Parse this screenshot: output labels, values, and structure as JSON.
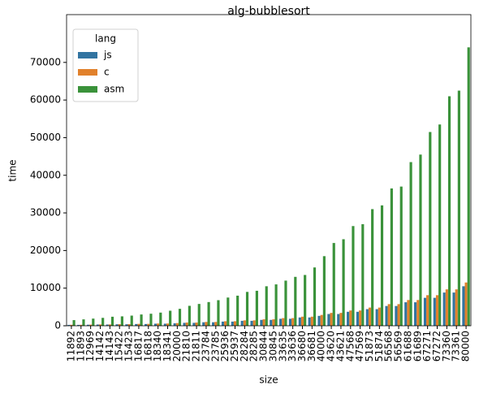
{
  "chart_data": {
    "type": "bar",
    "title": "alg-bubblesort",
    "x_label": "size",
    "y_label": "time",
    "categories": [
      "11892",
      "11893",
      "12969",
      "14142",
      "14143",
      "15422",
      "15423",
      "16817",
      "16818",
      "18340",
      "18341",
      "20000",
      "21810",
      "21811",
      "23784",
      "23785",
      "25936",
      "25937",
      "28284",
      "28285",
      "30844",
      "30845",
      "33635",
      "33636",
      "36680",
      "36681",
      "40000",
      "43620",
      "43621",
      "47568",
      "47569",
      "51873",
      "51874",
      "56568",
      "56569",
      "61688",
      "61689",
      "67271",
      "67272",
      "73360",
      "73361",
      "80000"
    ],
    "series": [
      {
        "name": "js",
        "color": "#3274a1",
        "values": [
          232,
          232,
          276,
          328,
          328,
          390,
          390,
          464,
          464,
          552,
          552,
          656,
          780,
          780,
          928,
          928,
          1104,
          1104,
          1312,
          1312,
          1561,
          1561,
          1856,
          1856,
          2207,
          2207,
          2625,
          3122,
          3122,
          3712,
          3712,
          4415,
          4415,
          5250,
          5250,
          6243,
          6243,
          7425,
          7425,
          8830,
          8830,
          10500
        ]
      },
      {
        "name": "c",
        "color": "#e1812c",
        "values": [
          254,
          254,
          302,
          359,
          359,
          427,
          427,
          508,
          508,
          605,
          605,
          719,
          855,
          855,
          1017,
          1017,
          1209,
          1209,
          1437,
          1437,
          1710,
          1710,
          2033,
          2033,
          2418,
          2418,
          2875,
          3419,
          3419,
          4066,
          4066,
          4835,
          4835,
          5750,
          5750,
          6838,
          6838,
          8132,
          8132,
          9670,
          9670,
          11500
        ]
      },
      {
        "name": "asm",
        "color": "#3a923a",
        "values": [
          1500,
          1700,
          1900,
          2100,
          2400,
          2500,
          2700,
          3000,
          3200,
          3500,
          4000,
          4500,
          5300,
          5800,
          6300,
          6800,
          7500,
          8000,
          9000,
          9300,
          10500,
          11000,
          12000,
          13000,
          13500,
          15500,
          18500,
          22000,
          23000,
          26500,
          27000,
          31000,
          32000,
          36500,
          37000,
          43500,
          45500,
          51500,
          53500,
          61000,
          62500,
          74000
        ]
      }
    ],
    "legend_title": "lang",
    "legend_position": "upper left",
    "ylim": [
      0,
      82700
    ],
    "yticks": [
      0,
      10000,
      20000,
      30000,
      40000,
      50000,
      60000,
      70000
    ]
  }
}
